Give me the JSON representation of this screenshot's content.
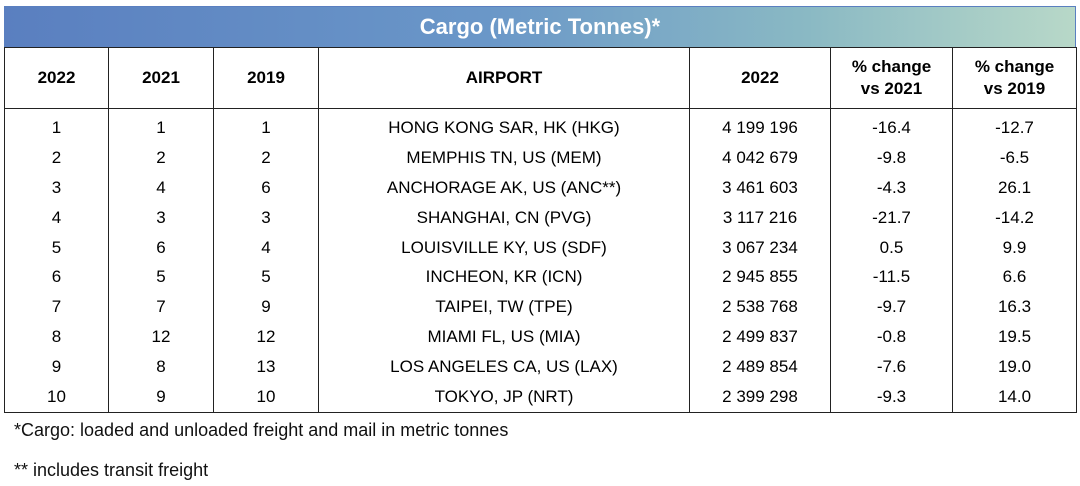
{
  "title": "Cargo (Metric Tonnes)*",
  "headers": [
    "2022",
    "2021",
    "2019",
    "AIRPORT",
    "2022",
    "% change\nvs 2021",
    "% change\nvs 2019"
  ],
  "rows": [
    [
      "1",
      "1",
      "1",
      "HONG KONG SAR, HK (HKG)",
      "4 199 196",
      "-16.4",
      "-12.7"
    ],
    [
      "2",
      "2",
      "2",
      "MEMPHIS TN, US (MEM)",
      "4 042 679",
      "-9.8",
      "-6.5"
    ],
    [
      "3",
      "4",
      "6",
      "ANCHORAGE AK, US (ANC**)",
      "3 461 603",
      "-4.3",
      "26.1"
    ],
    [
      "4",
      "3",
      "3",
      "SHANGHAI, CN (PVG)",
      "3 117 216",
      "-21.7",
      "-14.2"
    ],
    [
      "5",
      "6",
      "4",
      "LOUISVILLE KY, US (SDF)",
      "3 067 234",
      "0.5",
      "9.9"
    ],
    [
      "6",
      "5",
      "5",
      "INCHEON, KR (ICN)",
      "2 945 855",
      "-11.5",
      "6.6"
    ],
    [
      "7",
      "7",
      "9",
      "TAIPEI, TW (TPE)",
      "2 538 768",
      "-9.7",
      "16.3"
    ],
    [
      "8",
      "12",
      "12",
      "MIAMI FL, US (MIA)",
      "2 499 837",
      "-0.8",
      "19.5"
    ],
    [
      "9",
      "8",
      "13",
      "LOS ANGELES CA, US (LAX)",
      "2 489 854",
      "-7.6",
      "19.0"
    ],
    [
      "10",
      "9",
      "10",
      "TOKYO, JP (NRT)",
      "2 399 298",
      "-9.3",
      "14.0"
    ]
  ],
  "notes": {
    "note1": "*Cargo: loaded and unloaded freight and mail in metric tonnes",
    "note2": "** includes transit freight"
  }
}
